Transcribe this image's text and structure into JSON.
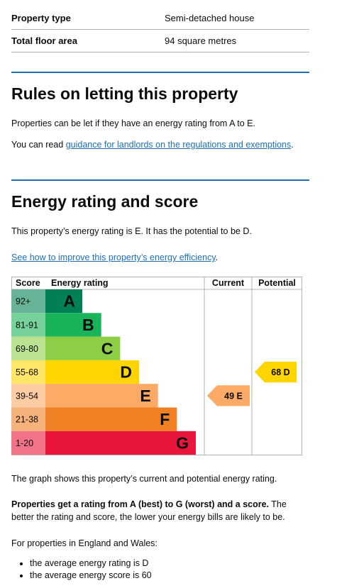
{
  "summary": {
    "rows": [
      {
        "key": "Property type",
        "value": "Semi-detached house"
      },
      {
        "key": "Total floor area",
        "value": "94 square metres"
      }
    ]
  },
  "letting": {
    "heading": "Rules on letting this property",
    "text1": "Properties can be let if they have an energy rating from A to E.",
    "text2_prefix": "You can read ",
    "text2_link": "guidance for landlords on the regulations and exemptions",
    "text2_suffix": "."
  },
  "energy": {
    "heading": "Energy rating and score",
    "text1": "This property’s energy rating is E. It has the potential to be D.",
    "link": "See how to improve this property’s energy efficiency",
    "link_suffix": "."
  },
  "chart_data": {
    "type": "bar",
    "headers": {
      "score": "Score",
      "rating": "Energy rating",
      "current": "Current",
      "potential": "Potential"
    },
    "bands": [
      {
        "score": "92+",
        "letter": "A",
        "color": "#008054",
        "label_bg": "#66b398"
      },
      {
        "score": "81-91",
        "letter": "B",
        "color": "#19b459",
        "label_bg": "#76d19b"
      },
      {
        "score": "69-80",
        "letter": "C",
        "color": "#8dce46",
        "label_bg": "#bbe290"
      },
      {
        "score": "55-68",
        "letter": "D",
        "color": "#ffd500",
        "label_bg": "#ffe666"
      },
      {
        "score": "39-54",
        "letter": "E",
        "color": "#fcaa65",
        "label_bg": "#fdcca3"
      },
      {
        "score": "21-38",
        "letter": "F",
        "color": "#ef8023",
        "label_bg": "#f5b37b"
      },
      {
        "score": "1-20",
        "letter": "G",
        "color": "#e9153b",
        "label_bg": "#f27389"
      }
    ],
    "current": {
      "score": 49,
      "letter": "E",
      "label": "49 E",
      "color": "#fcaa65"
    },
    "potential": {
      "score": 68,
      "letter": "D",
      "label": "68 D",
      "color": "#ffd500"
    }
  },
  "after": {
    "text1": "The graph shows this property’s current and potential energy rating.",
    "text2_bold": "Properties get a rating from A (best) to G (worst) and a score.",
    "text2_rest": " The better the rating and score, the lower your energy bills are likely to be.",
    "text3": "For properties in England and Wales:",
    "bullets": [
      "the average energy rating is D",
      "the average energy score is 60"
    ]
  }
}
